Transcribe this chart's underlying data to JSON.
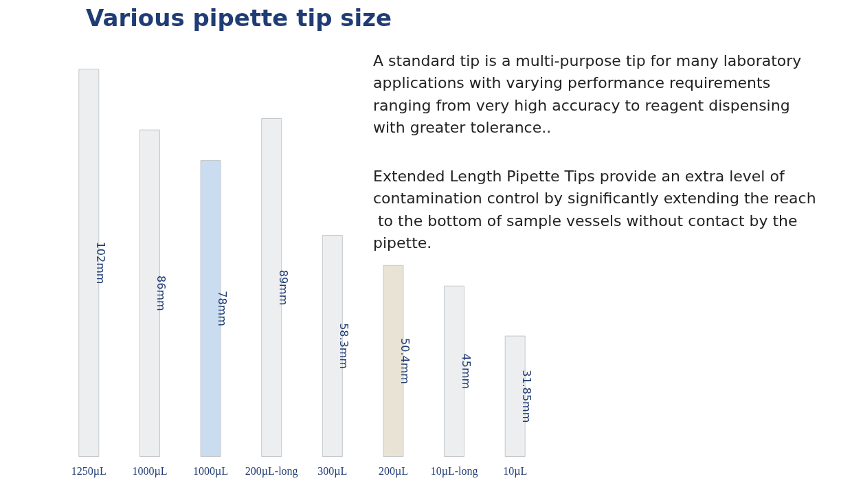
{
  "chart_data": {
    "type": "bar",
    "title": "Various pipette tip size",
    "categories": [
      "1250µL",
      "1000µL",
      "1000µL",
      "200µL-long",
      "300µL",
      "200µL",
      "10µL-long",
      "10µL"
    ],
    "values": [
      102,
      86,
      78,
      89,
      58.3,
      50.4,
      45,
      31.85
    ],
    "value_labels": [
      "102mm",
      "86mm",
      "78mm",
      "89mm",
      "58.3mm",
      "50.4mm",
      "45mm",
      "31.85mm"
    ],
    "colors": [
      "#eceef0",
      "#eceef0",
      "#c9dcf0",
      "#eceef0",
      "#eceef0",
      "#e9e3d6",
      "#eceef0",
      "#eceef0"
    ],
    "annotations": [
      "A standard tip is a multi-purpose tip for many laboratory applications with varying performance requirements ranging from very high accuracy to reagent dispensing with greater tolerance..",
      "Extended Length Pipette Tips provide an extra level of contamination control by significantly extending the reach to the bottom of sample vessels without contact by the pipette."
    ],
    "grid": false
  }
}
